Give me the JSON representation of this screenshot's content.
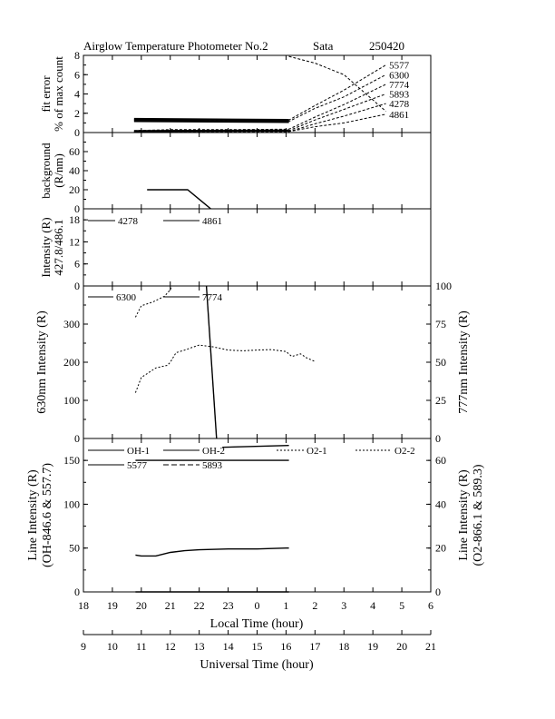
{
  "header": {
    "title": "Airglow Temperature Photometer No.2",
    "station": "Sata",
    "date": "250420"
  },
  "x_axes": {
    "local": {
      "label": "Local Time (hour)",
      "ticks": [
        "18",
        "19",
        "20",
        "21",
        "22",
        "23",
        "0",
        "1",
        "2",
        "3",
        "4",
        "5",
        "6"
      ]
    },
    "universal": {
      "label": "Universal Time (hour)",
      "ticks": [
        "9",
        "10",
        "11",
        "12",
        "13",
        "14",
        "15",
        "16",
        "17",
        "18",
        "19",
        "20",
        "21"
      ]
    }
  },
  "chart_data": [
    {
      "type": "line",
      "panel": "fit-error",
      "ylabel_lines": [
        "fit error",
        "% of max count"
      ],
      "ylim": [
        0,
        8
      ],
      "yticks": [
        "0",
        "2",
        "4",
        "6",
        "8"
      ],
      "x_unit": "local time (hours after 18)",
      "series": [
        {
          "name": "5577",
          "dash": "3,2",
          "points": [
            [
              1.75,
              1.4
            ],
            [
              1.95,
              1.3
            ],
            [
              3,
              1.35
            ],
            [
              4,
              1.3
            ],
            [
              5,
              1.25
            ],
            [
              6,
              1.25
            ],
            [
              7.1,
              1.3
            ],
            [
              8,
              2.8
            ],
            [
              9,
              4.4
            ],
            [
              10.45,
              7.0
            ]
          ]
        },
        {
          "name": "6300",
          "dash": "3,2",
          "points": [
            [
              1.75,
              1.2
            ],
            [
              2,
              1.4
            ],
            [
              3,
              1.2
            ],
            [
              4,
              1.15
            ],
            [
              5,
              1.1
            ],
            [
              6,
              1.1
            ],
            [
              7.1,
              1.15
            ],
            [
              8,
              2.5
            ],
            [
              9,
              3.7
            ],
            [
              10.45,
              6.0
            ]
          ]
        },
        {
          "name": "7774",
          "dash": "3,2",
          "points": [
            [
              1.75,
              0.2
            ],
            [
              3,
              0.3
            ],
            [
              5,
              0.3
            ],
            [
              7.1,
              0.35
            ],
            [
              8,
              1.6
            ],
            [
              9,
              2.9
            ],
            [
              10.45,
              5.0
            ]
          ]
        },
        {
          "name": "5893",
          "dash": "3,2",
          "points": [
            [
              1.75,
              0.1
            ],
            [
              3,
              0.15
            ],
            [
              5,
              0.15
            ],
            [
              7.1,
              0.2
            ],
            [
              8,
              1.3
            ],
            [
              9,
              2.4
            ],
            [
              10.45,
              4.0
            ]
          ]
        },
        {
          "name": "4278",
          "dash": "3,2",
          "points": [
            [
              1.75,
              0.05
            ],
            [
              3,
              0.1
            ],
            [
              5,
              0.1
            ],
            [
              7.1,
              0.1
            ],
            [
              8,
              0.9
            ],
            [
              9,
              1.7
            ],
            [
              10.45,
              3.0
            ]
          ]
        },
        {
          "name": "4861",
          "dash": "3,2",
          "points": [
            [
              1.75,
              0.05
            ],
            [
              3,
              0.05
            ],
            [
              5,
              0.05
            ],
            [
              7.1,
              0.1
            ],
            [
              8,
              0.6
            ],
            [
              9,
              1.0
            ],
            [
              10.45,
              1.9
            ]
          ]
        },
        {
          "name": "",
          "dash": "3,2",
          "points": [
            [
              7.1,
              7.9
            ],
            [
              8,
              7.2
            ],
            [
              9,
              6.0
            ],
            [
              10.45,
              2.2
            ]
          ]
        }
      ]
    },
    {
      "type": "line",
      "panel": "background",
      "ylabel_lines": [
        "background",
        "(R/nm)"
      ],
      "ylim": [
        0,
        80
      ],
      "yticks": [
        "0",
        "20",
        "40",
        "60"
      ],
      "series": [
        {
          "name": "",
          "dash": "",
          "points": [
            [
              2.2,
              20
            ],
            [
              3.6,
              20
            ],
            [
              4.2,
              5
            ],
            [
              4.4,
              0
            ]
          ]
        }
      ]
    },
    {
      "type": "line",
      "panel": "intensity-427-486",
      "ylabel_lines": [
        "Intensity (R)",
        "427.8/486.1"
      ],
      "ylim": [
        0,
        21
      ],
      "yticks": [
        "0",
        "6",
        "12",
        "18"
      ],
      "legend": [
        "4278",
        "4861"
      ],
      "series": [
        {
          "name": "4278",
          "dash": "",
          "points": []
        },
        {
          "name": "4861",
          "dash": "",
          "points": []
        }
      ]
    },
    {
      "type": "line",
      "panel": "630-777",
      "ylabel_left": "630nm Intensity (R)",
      "ylabel_right": "777nm Intensity (R)",
      "ylim": [
        0,
        400
      ],
      "yticks": [
        "0",
        "100",
        "200",
        "300"
      ],
      "ylim_right": [
        0,
        100
      ],
      "yticks_right": [
        "0",
        "25",
        "50",
        "75",
        "100"
      ],
      "legend": [
        "6300",
        "7774"
      ],
      "series": [
        {
          "name": "6300",
          "dash": "2,2",
          "points": [
            [
              1.8,
              120
            ],
            [
              2,
              160
            ],
            [
              2.5,
              185
            ],
            [
              2.9,
              192
            ],
            [
              3,
              200
            ],
            [
              3.2,
              225
            ],
            [
              3.5,
              232
            ],
            [
              3.8,
              240
            ],
            [
              4,
              245
            ],
            [
              4.5,
              240
            ],
            [
              5,
              232
            ],
            [
              5.5,
              230
            ],
            [
              6,
              232
            ],
            [
              6.5,
              233
            ],
            [
              7,
              228
            ],
            [
              7.2,
              215
            ],
            [
              7.5,
              222
            ],
            [
              7.7,
              212
            ],
            [
              8,
              202
            ]
          ]
        },
        {
          "name": "6300",
          "dash": "2,2",
          "points": [
            [
              1.8,
              318
            ],
            [
              2,
              348
            ],
            [
              2.4,
              358
            ],
            [
              2.8,
              373
            ],
            [
              3,
              390
            ],
            [
              3.05,
              400
            ]
          ]
        },
        {
          "name": "",
          "dash": "",
          "points": [
            [
              4.25,
              400
            ],
            [
              4.6,
              0
            ]
          ]
        }
      ]
    },
    {
      "type": "line",
      "panel": "line-intensity",
      "ylabel_left_lines": [
        "Line Intensity (R)",
        "(OH-846.6 & 557.7)"
      ],
      "ylabel_right_lines": [
        "Line Intensity (R)",
        "(O2-866.1 & 589.3)"
      ],
      "ylim": [
        0,
        175
      ],
      "yticks": [
        "0",
        "50",
        "100",
        "150"
      ],
      "ylim_right": [
        0,
        70
      ],
      "yticks_right": [
        "0",
        "20",
        "40",
        "60"
      ],
      "legend": [
        "OH-1",
        "OH-2",
        "O2-1",
        "O2-2",
        "5577",
        "5893"
      ],
      "series": [
        {
          "name": "5577",
          "dash": "",
          "points": [
            [
              1.8,
              42
            ],
            [
              2,
              41
            ],
            [
              2.5,
              41
            ],
            [
              3,
              45
            ],
            [
              3.5,
              47
            ],
            [
              4,
              48
            ],
            [
              5,
              49
            ],
            [
              6,
              49
            ],
            [
              7,
              50
            ],
            [
              7.1,
              50
            ]
          ]
        },
        {
          "name": "",
          "dash": "",
          "points": [
            [
              1.8,
              150
            ],
            [
              7.1,
              150
            ]
          ]
        },
        {
          "name": "",
          "dash": "",
          "points": [
            [
              4.8,
              165
            ],
            [
              7.1,
              167
            ]
          ]
        },
        {
          "name": "",
          "dash": "",
          "points": [
            [
              1.8,
              0
            ],
            [
              7.1,
              0
            ]
          ]
        }
      ]
    }
  ]
}
